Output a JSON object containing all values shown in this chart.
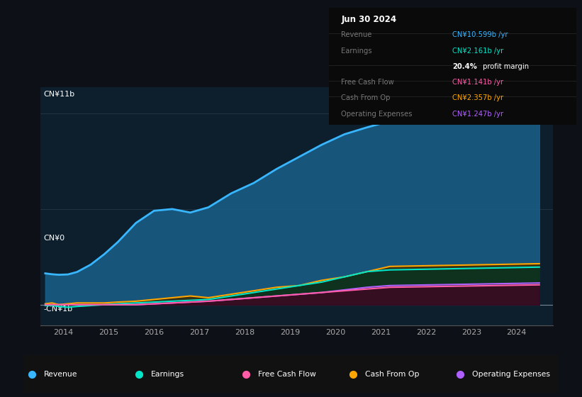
{
  "bg_color": "#0d1117",
  "chart_bg": "#0d1f2d",
  "legend": [
    {
      "label": "Revenue",
      "color": "#38b6ff"
    },
    {
      "label": "Earnings",
      "color": "#00e5c8"
    },
    {
      "label": "Free Cash Flow",
      "color": "#ff5ca8"
    },
    {
      "label": "Cash From Op",
      "color": "#ffa500"
    },
    {
      "label": "Operating Expenses",
      "color": "#b060ff"
    }
  ],
  "xmin": 2013.5,
  "xmax": 2024.8,
  "ymin": -1.2,
  "ymax": 12.5,
  "revenue": [
    1.8,
    1.75,
    1.72,
    1.74,
    1.88,
    2.3,
    2.9,
    3.6,
    4.7,
    5.4,
    5.5,
    5.3,
    5.6,
    6.4,
    7.0,
    7.8,
    8.5,
    9.2,
    9.8,
    10.2,
    10.55,
    10.599
  ],
  "earnings": [
    -0.05,
    -0.05,
    -0.1,
    -0.15,
    -0.1,
    -0.05,
    0.0,
    0.05,
    0.1,
    0.15,
    0.2,
    0.25,
    0.3,
    0.5,
    0.7,
    0.9,
    1.1,
    1.3,
    1.6,
    1.9,
    2.0,
    2.161
  ],
  "free_cash_flow": [
    0.0,
    0.0,
    0.0,
    0.0,
    0.0,
    0.0,
    0.0,
    0.0,
    0.0,
    0.05,
    0.1,
    0.15,
    0.2,
    0.3,
    0.4,
    0.5,
    0.6,
    0.7,
    0.8,
    0.9,
    1.0,
    1.141
  ],
  "cash_from_op": [
    0.05,
    0.1,
    0.0,
    0.05,
    0.1,
    0.1,
    0.1,
    0.15,
    0.2,
    0.3,
    0.4,
    0.5,
    0.4,
    0.6,
    0.8,
    1.0,
    1.1,
    1.4,
    1.6,
    1.9,
    2.2,
    2.357
  ],
  "operating_expenses": [
    0.0,
    0.0,
    0.0,
    0.0,
    0.0,
    0.0,
    0.0,
    0.0,
    0.0,
    0.05,
    0.1,
    0.15,
    0.2,
    0.3,
    0.4,
    0.5,
    0.6,
    0.7,
    0.85,
    1.0,
    1.1,
    1.247
  ],
  "x_years": [
    2013.6,
    2013.75,
    2013.9,
    2014.1,
    2014.3,
    2014.6,
    2014.9,
    2015.2,
    2015.6,
    2016.0,
    2016.4,
    2016.8,
    2017.2,
    2017.7,
    2018.2,
    2018.7,
    2019.2,
    2019.7,
    2020.2,
    2020.7,
    2021.2,
    2024.5
  ],
  "xticks": [
    2014,
    2015,
    2016,
    2017,
    2018,
    2019,
    2020,
    2021,
    2022,
    2023,
    2024
  ],
  "ylabel_top": "CN¥11b",
  "ylabel_zero": "CN¥0",
  "ylabel_neg": "-CN¥1b",
  "info_title": "Jun 30 2024",
  "info_rows": [
    {
      "label": "Revenue",
      "value": "CN¥10.599b /yr",
      "value_color": "#38b6ff",
      "bold_prefix": ""
    },
    {
      "label": "Earnings",
      "value": "CN¥2.161b /yr",
      "value_color": "#00e5c8",
      "bold_prefix": ""
    },
    {
      "label": "",
      "value": "20.4% profit margin",
      "value_color": "#ffffff",
      "bold_prefix": "20.4%"
    },
    {
      "label": "Free Cash Flow",
      "value": "CN¥1.141b /yr",
      "value_color": "#ff5ca8",
      "bold_prefix": ""
    },
    {
      "label": "Cash From Op",
      "value": "CN¥2.357b /yr",
      "value_color": "#ffa500",
      "bold_prefix": ""
    },
    {
      "label": "Operating Expenses",
      "value": "CN¥1.247b /yr",
      "value_color": "#b060ff",
      "bold_prefix": ""
    }
  ]
}
